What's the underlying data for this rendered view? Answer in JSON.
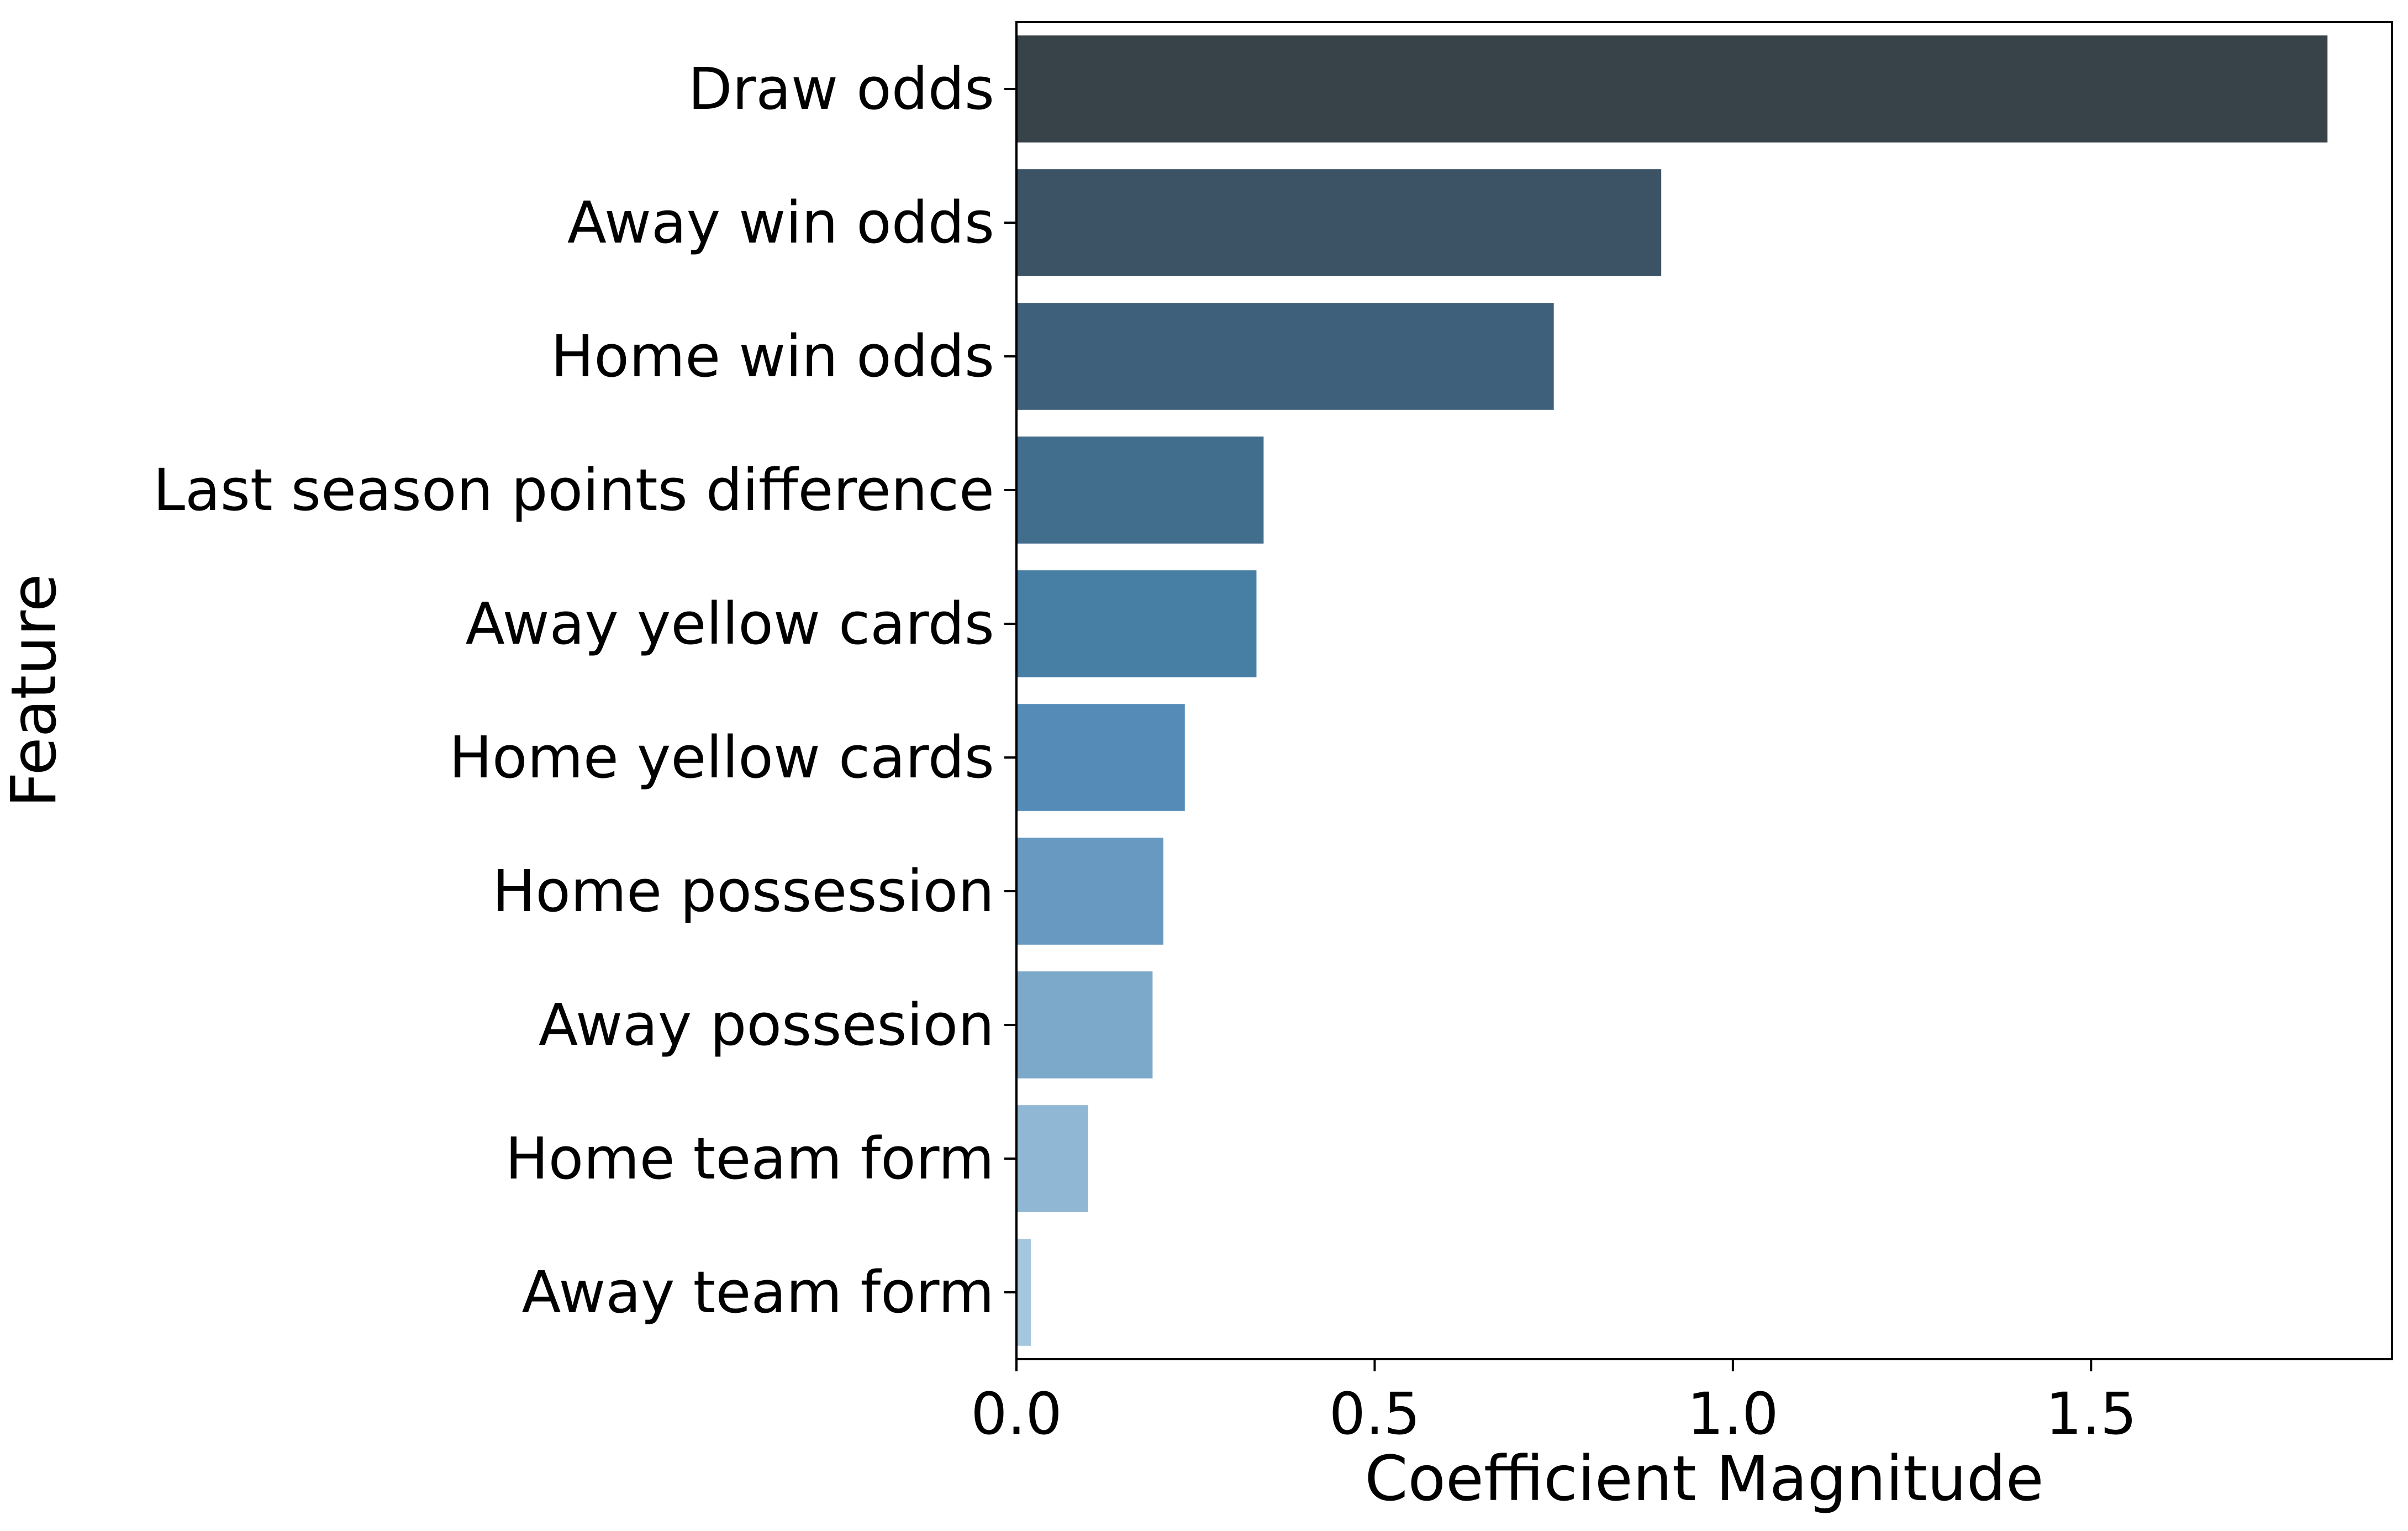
{
  "chart_data": {
    "type": "bar",
    "orientation": "horizontal",
    "title": "",
    "xlabel": "Coefficient Magnitude",
    "ylabel": "Feature",
    "categories": [
      "Draw odds",
      "Away win odds",
      "Home win odds",
      "Last season points difference",
      "Away yellow cards",
      "Home yellow cards",
      "Home possession",
      "Away possesion",
      "Home team form",
      "Away team form"
    ],
    "values": [
      1.83,
      0.9,
      0.75,
      0.345,
      0.335,
      0.235,
      0.205,
      0.19,
      0.1,
      0.02
    ],
    "xlim": [
      0,
      1.92
    ],
    "xticks": [
      0.0,
      0.5,
      1.0,
      1.5
    ],
    "xtick_labels": [
      "0.0",
      "0.5",
      "1.0",
      "1.5"
    ],
    "grid": false,
    "colors": [
      "#374249",
      "#3b5365",
      "#3e607a",
      "#426e8e",
      "#477ea4",
      "#558bb7",
      "#6899c0",
      "#7ca8c9",
      "#90b7d3",
      "#a4c7de"
    ]
  }
}
